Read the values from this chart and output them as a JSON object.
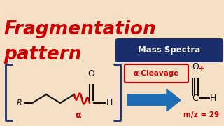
{
  "bg_color": "#f5dfc5",
  "title_line1": "Fragmentation",
  "title_line2": "pattern",
  "title_color": "#cc0000",
  "title_fontsize": 19,
  "badge_text": "Mass Spectra",
  "badge_bg": "#1a2e6e",
  "badge_fg": "#ffffff",
  "badge_fontsize": 8.5,
  "bracket_color": "#1a2e6e",
  "molecule_color": "#111111",
  "alpha_color": "#cc0000",
  "alpha_zigzag_color": "#cc0000",
  "arrow_color": "#1e6db5",
  "cleavage_box_color": "#cc0000",
  "cleavage_text": "α-Cleavage",
  "cleavage_fontsize": 7.5,
  "product_label": "m/z = 29",
  "product_label_color": "#cc0000",
  "product_fontsize": 7.5,
  "plus_color": "#cc0000"
}
